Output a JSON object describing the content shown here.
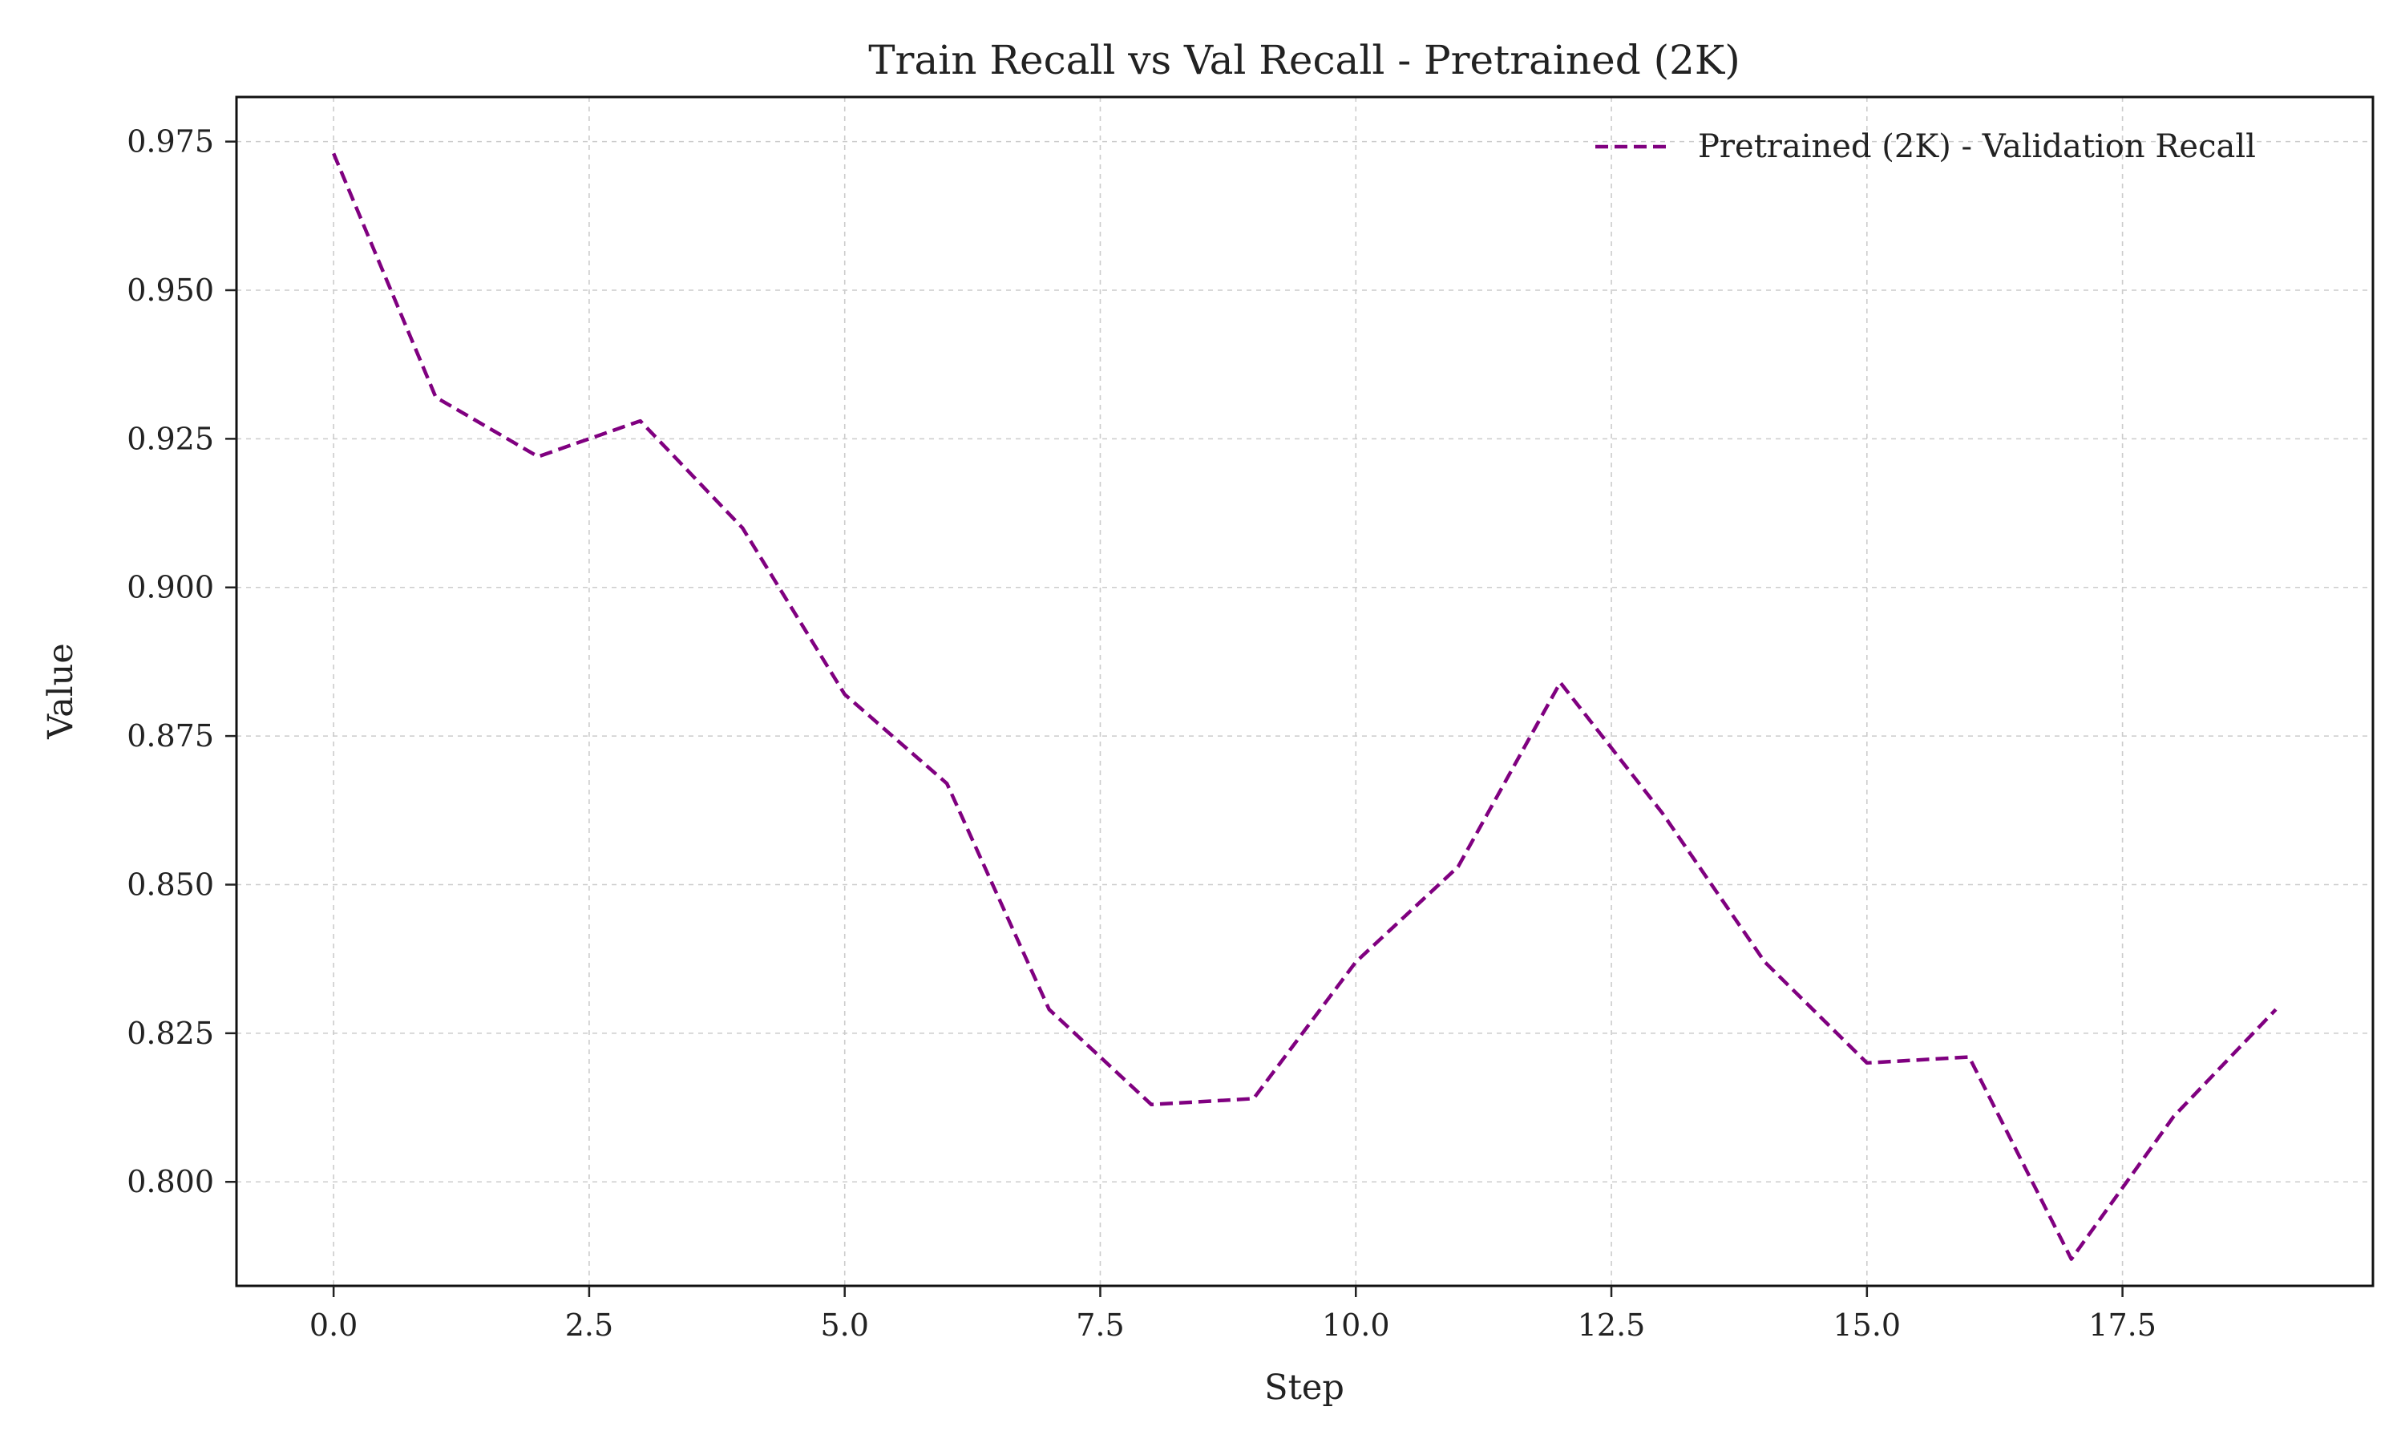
{
  "chart_data": {
    "type": "line",
    "title": "Train Recall vs Val Recall - Pretrained (2K)",
    "xlabel": "Step",
    "ylabel": "Value",
    "xlim": [
      -0.95,
      19.95
    ],
    "ylim": [
      0.7825,
      0.9825
    ],
    "xticks": [
      0.0,
      2.5,
      5.0,
      7.5,
      10.0,
      12.5,
      15.0,
      17.5
    ],
    "xtick_labels": [
      "0.0",
      "2.5",
      "5.0",
      "7.5",
      "10.0",
      "12.5",
      "15.0",
      "17.5"
    ],
    "yticks": [
      0.8,
      0.825,
      0.85,
      0.875,
      0.9,
      0.925,
      0.95,
      0.975
    ],
    "ytick_labels": [
      "0.800",
      "0.825",
      "0.850",
      "0.875",
      "0.900",
      "0.925",
      "0.950",
      "0.975"
    ],
    "grid": true,
    "legend_position": "top-right",
    "series": [
      {
        "name": "Pretrained (2K) - Validation Recall",
        "color": "#800080",
        "line_style": "dashed",
        "x": [
          0,
          1,
          2,
          3,
          4,
          5,
          6,
          7,
          8,
          9,
          10,
          11,
          12,
          13,
          14,
          15,
          16,
          17,
          18,
          19
        ],
        "y": [
          0.973,
          0.932,
          0.922,
          0.928,
          0.91,
          0.882,
          0.867,
          0.829,
          0.813,
          0.814,
          0.837,
          0.853,
          0.884,
          0.862,
          0.837,
          0.82,
          0.821,
          0.787,
          0.811,
          0.829
        ]
      }
    ]
  }
}
